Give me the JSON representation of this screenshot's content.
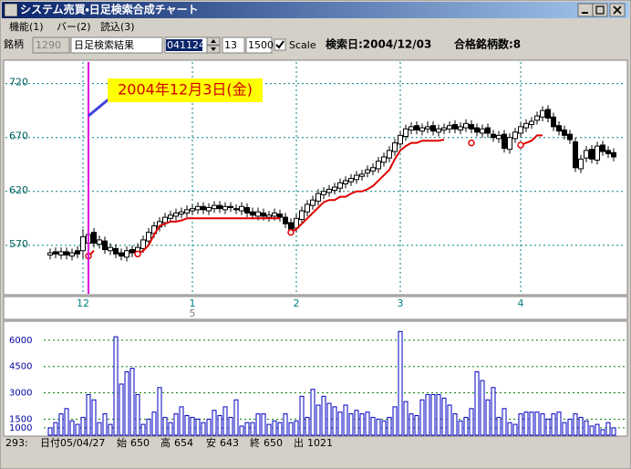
{
  "window": {
    "title": "システム売買・日足検索合成チャート",
    "menu": [
      "機能(1)",
      "バー(2)",
      "読込(3)"
    ]
  },
  "toolbar": {
    "label": "銘柄",
    "code": "1290",
    "name": "日足検索結果",
    "date": "041124",
    "days": "13",
    "amount": "1500",
    "scale_label": "Scale",
    "scale_checked": true,
    "search_date": "検索日:2004/12/03",
    "passed": "合格銘柄数:8"
  },
  "chart_data": [
    {
      "type": "candlestick",
      "categories": [
        null,
        null,
        null,
        null,
        null,
        null,
        "12",
        null,
        null,
        null,
        null,
        null,
        null,
        null,
        null,
        null,
        null,
        null,
        null,
        null,
        null,
        null,
        null,
        null,
        null,
        null,
        "1",
        null,
        null,
        null,
        null,
        null,
        null,
        null,
        null,
        null,
        null,
        null,
        null,
        null,
        null,
        null,
        null,
        null,
        null,
        "2",
        null,
        null,
        null,
        null,
        null,
        null,
        null,
        null,
        null,
        null,
        null,
        null,
        null,
        null,
        null,
        null,
        null,
        null,
        "3",
        null,
        null,
        null,
        null,
        null,
        null,
        null,
        null,
        null,
        null,
        null,
        null,
        null,
        null,
        null,
        null,
        null,
        null,
        null,
        null,
        null,
        "4",
        null,
        null,
        null,
        null,
        null,
        null,
        null,
        null,
        null,
        null,
        null,
        null,
        null,
        null,
        null,
        null,
        null
      ],
      "x_sublabel": "5",
      "open": [
        561,
        564,
        561,
        564,
        560,
        565,
        565,
        572,
        582,
        571,
        574,
        565,
        567,
        563,
        559,
        566,
        564,
        567,
        574,
        581,
        587,
        591,
        595,
        597,
        599,
        600,
        602,
        603,
        606,
        602,
        604,
        607,
        603,
        606,
        604,
        602,
        605,
        601,
        597,
        600,
        596,
        597,
        599,
        596,
        591,
        586,
        594,
        601,
        607,
        611,
        617,
        619,
        621,
        623,
        627,
        629,
        631,
        634,
        637,
        639,
        641,
        647,
        651,
        657,
        664,
        671,
        677,
        681,
        676,
        678,
        681,
        675,
        677,
        678,
        682,
        677,
        679,
        682,
        679,
        674,
        679,
        673,
        669,
        673,
        659,
        669,
        674,
        679,
        682,
        686,
        689,
        696,
        689,
        681,
        677,
        673,
        666,
        641,
        651,
        659,
        649,
        663,
        658,
        656
      ],
      "high": [
        567,
        568,
        568,
        568,
        567,
        569,
        585,
        586,
        586,
        579,
        578,
        572,
        571,
        567,
        569,
        570,
        572,
        579,
        586,
        592,
        596,
        600,
        602,
        604,
        605,
        607,
        608,
        610,
        610,
        609,
        611,
        611,
        610,
        610,
        608,
        610,
        609,
        605,
        605,
        604,
        602,
        604,
        603,
        600,
        595,
        599,
        606,
        612,
        616,
        622,
        624,
        626,
        628,
        632,
        634,
        636,
        639,
        640,
        644,
        646,
        652,
        656,
        662,
        669,
        676,
        682,
        684,
        685,
        683,
        685,
        685,
        682,
        683,
        685,
        686,
        684,
        687,
        686,
        683,
        682,
        683,
        677,
        676,
        677,
        674,
        679,
        684,
        687,
        689,
        694,
        699,
        700,
        693,
        685,
        681,
        677,
        670,
        654,
        662,
        663,
        666,
        667,
        662,
        660
      ],
      "low": [
        557,
        558,
        557,
        557,
        556,
        558,
        558,
        568,
        568,
        567,
        562,
        561,
        558,
        556,
        555,
        559,
        560,
        563,
        570,
        577,
        583,
        587,
        591,
        593,
        595,
        596,
        598,
        599,
        599,
        598,
        600,
        600,
        599,
        601,
        599,
        598,
        596,
        594,
        593,
        593,
        592,
        593,
        592,
        586,
        581,
        582,
        590,
        597,
        603,
        607,
        613,
        615,
        617,
        619,
        623,
        625,
        627,
        630,
        633,
        635,
        637,
        643,
        647,
        653,
        660,
        667,
        673,
        673,
        672,
        674,
        672,
        671,
        673,
        674,
        674,
        673,
        675,
        674,
        671,
        670,
        670,
        666,
        665,
        656,
        655,
        665,
        670,
        675,
        678,
        682,
        685,
        684,
        676,
        672,
        668,
        664,
        638,
        637,
        647,
        646,
        645,
        653,
        651,
        648
      ],
      "close": [
        563,
        562,
        564,
        561,
        563,
        562,
        578,
        580,
        572,
        575,
        566,
        568,
        562,
        560,
        565,
        563,
        568,
        575,
        582,
        588,
        592,
        596,
        598,
        600,
        601,
        603,
        604,
        606,
        603,
        605,
        607,
        604,
        606,
        605,
        603,
        606,
        600,
        598,
        601,
        597,
        598,
        600,
        596,
        590,
        585,
        595,
        602,
        608,
        612,
        618,
        620,
        622,
        624,
        628,
        630,
        632,
        635,
        636,
        640,
        642,
        648,
        652,
        658,
        665,
        672,
        678,
        680,
        677,
        679,
        680,
        676,
        678,
        679,
        681,
        678,
        680,
        683,
        678,
        675,
        678,
        674,
        670,
        672,
        660,
        670,
        675,
        680,
        683,
        685,
        690,
        695,
        688,
        680,
        676,
        672,
        668,
        642,
        650,
        658,
        650,
        662,
        657,
        655,
        652
      ],
      "stop_line": {
        "color": "#e00000",
        "values": [
          null,
          null,
          null,
          null,
          null,
          null,
          null,
          560,
          565,
          null,
          null,
          null,
          null,
          null,
          null,
          null,
          562,
          565,
          570,
          580,
          588,
          590,
          592,
          592,
          593,
          595,
          595,
          595,
          595,
          595,
          595,
          595,
          595,
          595,
          595,
          595,
          595,
          595,
          595,
          595,
          595,
          595,
          595,
          null,
          582,
          585,
          590,
          595,
          600,
          605,
          610,
          612,
          612,
          615,
          615,
          618,
          620,
          620,
          622,
          625,
          630,
          635,
          640,
          650,
          658,
          662,
          665,
          665,
          667,
          667,
          667,
          667,
          668,
          null,
          null,
          null,
          null,
          665,
          null,
          null,
          null,
          null,
          null,
          null,
          null,
          null,
          663,
          665,
          667,
          672,
          672,
          null,
          null,
          null,
          null,
          null,
          null,
          null,
          null,
          null,
          null,
          null,
          null,
          null
        ]
      },
      "ylim": [
        525,
        740
      ],
      "yticks": [
        570,
        620,
        670,
        720
      ],
      "grid": true,
      "annotation": "2004年12月3日(金)"
    },
    {
      "type": "bar",
      "color": "#0000c0",
      "values": [
        1000,
        1300,
        1800,
        2100,
        1400,
        1200,
        1600,
        2900,
        2600,
        1300,
        1800,
        1200,
        6200,
        3500,
        4200,
        4400,
        2900,
        1200,
        1500,
        1900,
        3300,
        1600,
        1300,
        1800,
        2200,
        1700,
        1600,
        1500,
        1300,
        1500,
        2000,
        1700,
        2200,
        1600,
        2600,
        1100,
        1300,
        1300,
        1800,
        1800,
        1200,
        1400,
        1300,
        1800,
        1300,
        1400,
        2800,
        1600,
        3200,
        2300,
        2800,
        2400,
        2200,
        1900,
        2300,
        1800,
        2000,
        1800,
        1900,
        1600,
        1500,
        1400,
        1600,
        2200,
        6500,
        2500,
        1800,
        1700,
        2600,
        2900,
        2900,
        2900,
        2700,
        2300,
        1800,
        1400,
        1600,
        2100,
        4200,
        3700,
        2600,
        3300,
        1600,
        2100,
        1300,
        1200,
        1800,
        1900,
        1900,
        1900,
        1800,
        1500,
        1800,
        1900,
        1300,
        1500,
        1800,
        1600,
        1400,
        1100,
        1200,
        900,
        1300,
        1000
      ],
      "ylim": [
        580,
        7090
      ],
      "yticks": [
        1000,
        1500,
        3000,
        4500,
        6000
      ],
      "grid": true
    }
  ],
  "status_bar": {
    "record": "293:",
    "date": "日付05/04/27",
    "open_label": "始",
    "open": 650,
    "high_label": "高",
    "high": 654,
    "low_label": "安",
    "low": 643,
    "close_label": "終",
    "close": 650,
    "volume_label": "出",
    "volume": 1021
  }
}
